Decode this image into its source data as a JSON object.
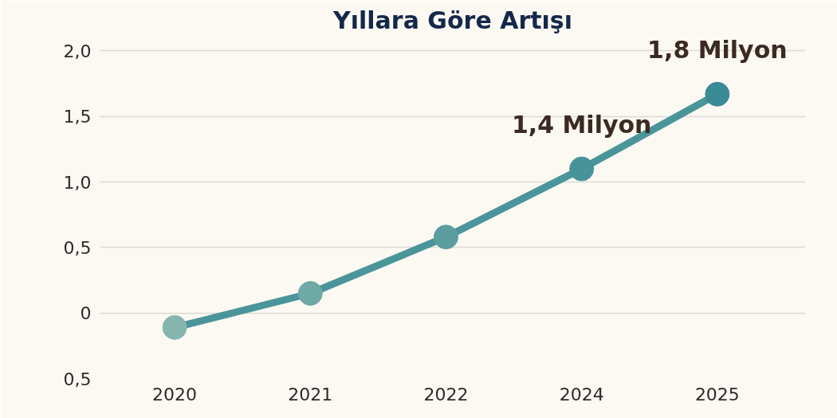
{
  "chart_data": {
    "type": "line",
    "title": "Yıllara Göre Artışı",
    "categories": [
      "2020",
      "2021",
      "2022",
      "2024",
      "2025"
    ],
    "series": [
      {
        "color": "#4a9599",
        "colors": [
          "#86b5ae",
          "#6ea9a6",
          "#5c9ea0",
          "#46939a",
          "#3a8a96"
        ],
        "values": [
          -0.11,
          0.15,
          0.58,
          1.1,
          1.67
        ]
      }
    ],
    "ylim": [
      -0.5,
      2.1
    ],
    "yticks": [
      {
        "value": -0.5,
        "label": "0,5"
      },
      {
        "value": 0,
        "label": "0"
      },
      {
        "value": 0.5,
        "label": "0,5"
      },
      {
        "value": 1,
        "label": "1,0"
      },
      {
        "value": 1.5,
        "label": "1,5"
      },
      {
        "value": 2,
        "label": "2,0"
      }
    ],
    "grid": "y",
    "marker": "circle",
    "line_style": "solid",
    "annotations": [
      {
        "text": "1,4 Milyon",
        "x": "2024",
        "y": 1.1
      },
      {
        "text": "1,8 Milyon",
        "x": "2025",
        "y": 1.67
      }
    ]
  }
}
